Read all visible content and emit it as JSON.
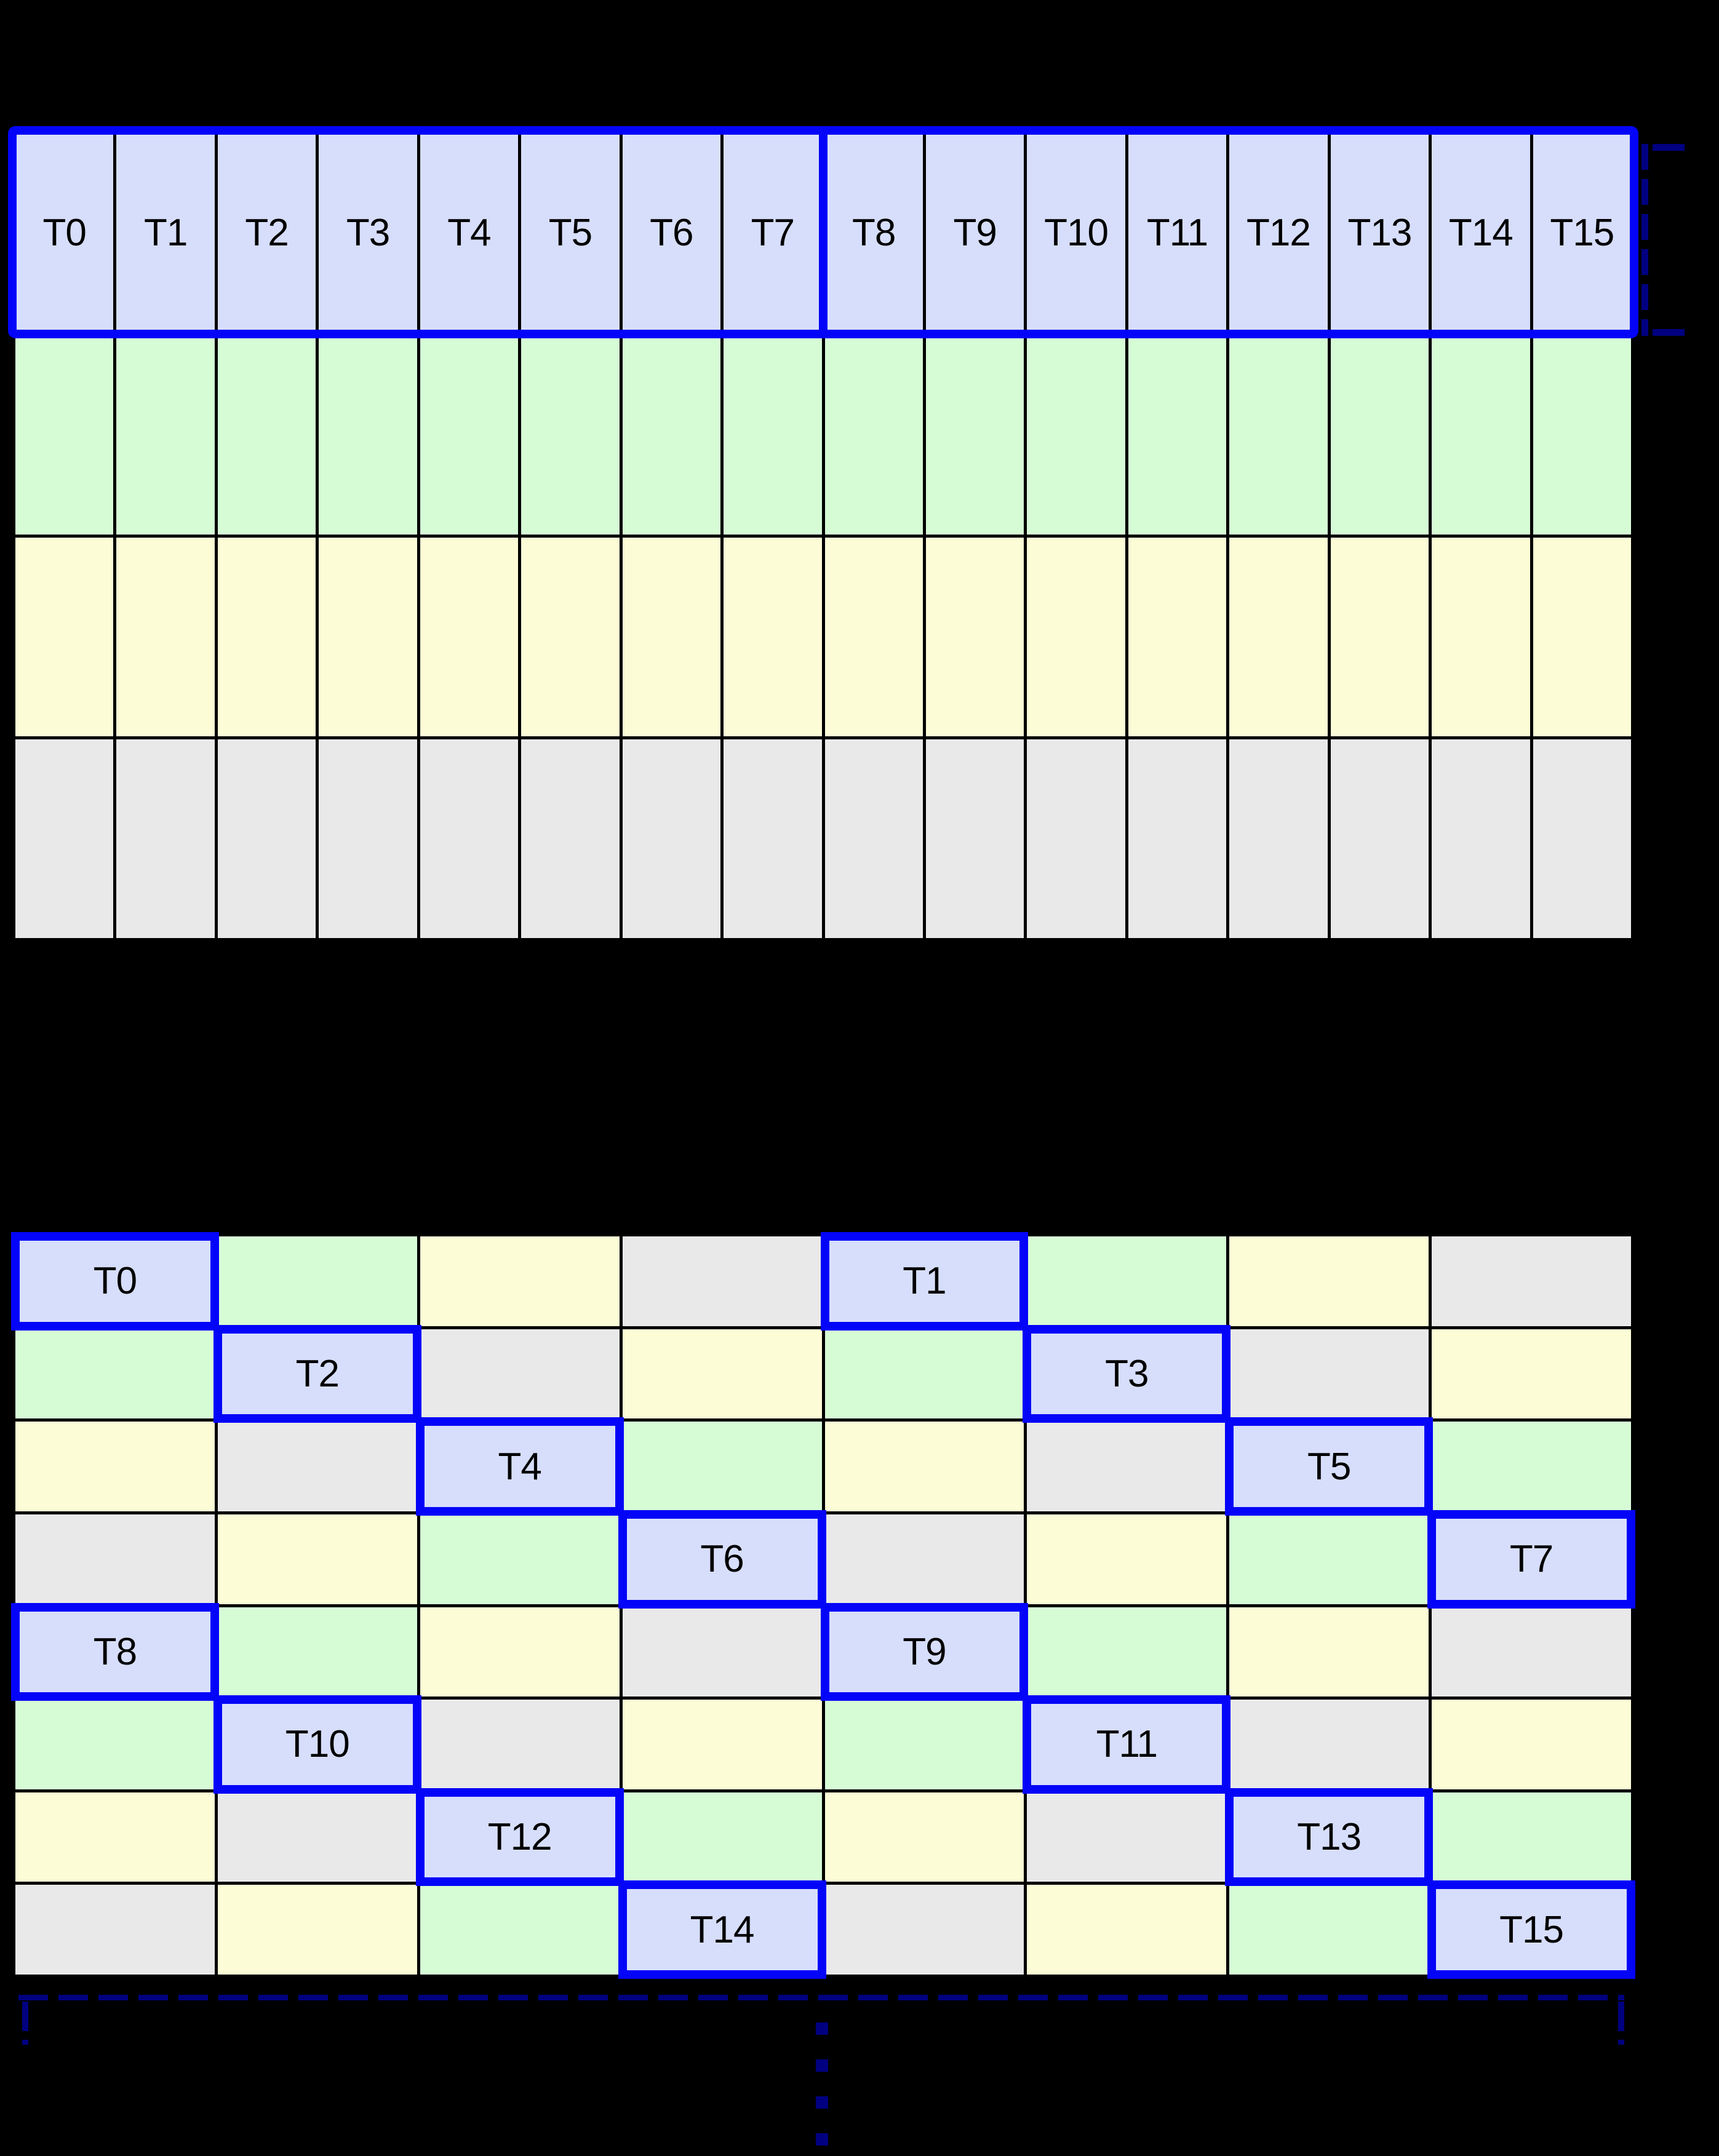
{
  "diagram": {
    "background": "#000000",
    "colors": {
      "highlight_blue": "#0404f8",
      "bracket_navy": "#000080",
      "grid_line": "#000000",
      "label_text": "#000000",
      "thread_cell": "#d7defb",
      "green_cell": "#d6fcd6",
      "yellow_cell": "#fcfcd6",
      "gray_cell": "#e9e9e9"
    },
    "top_grid": {
      "columns": 16,
      "rows": 4,
      "row_colors": [
        "thread",
        "green",
        "yellow",
        "gray"
      ],
      "thread_labels": [
        "T0",
        "T1",
        "T2",
        "T3",
        "T4",
        "T5",
        "T6",
        "T7",
        "T8",
        "T9",
        "T10",
        "T11",
        "T12",
        "T13",
        "T14",
        "T15"
      ],
      "divider_after_column": 8
    },
    "bottom_grid": {
      "columns": 8,
      "rows": 8,
      "cells": [
        [
          {
            "c": "thread",
            "t": "T0"
          },
          {
            "c": "green"
          },
          {
            "c": "yellow"
          },
          {
            "c": "gray"
          },
          {
            "c": "thread",
            "t": "T1"
          },
          {
            "c": "green"
          },
          {
            "c": "yellow"
          },
          {
            "c": "gray"
          }
        ],
        [
          {
            "c": "green"
          },
          {
            "c": "thread",
            "t": "T2"
          },
          {
            "c": "gray"
          },
          {
            "c": "yellow"
          },
          {
            "c": "green"
          },
          {
            "c": "thread",
            "t": "T3"
          },
          {
            "c": "gray"
          },
          {
            "c": "yellow"
          }
        ],
        [
          {
            "c": "yellow"
          },
          {
            "c": "gray"
          },
          {
            "c": "thread",
            "t": "T4"
          },
          {
            "c": "green"
          },
          {
            "c": "yellow"
          },
          {
            "c": "gray"
          },
          {
            "c": "thread",
            "t": "T5"
          },
          {
            "c": "green"
          }
        ],
        [
          {
            "c": "gray"
          },
          {
            "c": "yellow"
          },
          {
            "c": "green"
          },
          {
            "c": "thread",
            "t": "T6"
          },
          {
            "c": "gray"
          },
          {
            "c": "yellow"
          },
          {
            "c": "green"
          },
          {
            "c": "thread",
            "t": "T7"
          }
        ],
        [
          {
            "c": "thread",
            "t": "T8"
          },
          {
            "c": "green"
          },
          {
            "c": "yellow"
          },
          {
            "c": "gray"
          },
          {
            "c": "thread",
            "t": "T9"
          },
          {
            "c": "green"
          },
          {
            "c": "yellow"
          },
          {
            "c": "gray"
          }
        ],
        [
          {
            "c": "green"
          },
          {
            "c": "thread",
            "t": "T10"
          },
          {
            "c": "gray"
          },
          {
            "c": "yellow"
          },
          {
            "c": "green"
          },
          {
            "c": "thread",
            "t": "T11"
          },
          {
            "c": "gray"
          },
          {
            "c": "yellow"
          }
        ],
        [
          {
            "c": "yellow"
          },
          {
            "c": "gray"
          },
          {
            "c": "thread",
            "t": "T12"
          },
          {
            "c": "green"
          },
          {
            "c": "yellow"
          },
          {
            "c": "gray"
          },
          {
            "c": "thread",
            "t": "T13"
          },
          {
            "c": "green"
          }
        ],
        [
          {
            "c": "gray"
          },
          {
            "c": "yellow"
          },
          {
            "c": "green"
          },
          {
            "c": "thread",
            "t": "T14"
          },
          {
            "c": "gray"
          },
          {
            "c": "yellow"
          },
          {
            "c": "green"
          },
          {
            "c": "thread",
            "t": "T15"
          }
        ]
      ]
    }
  }
}
